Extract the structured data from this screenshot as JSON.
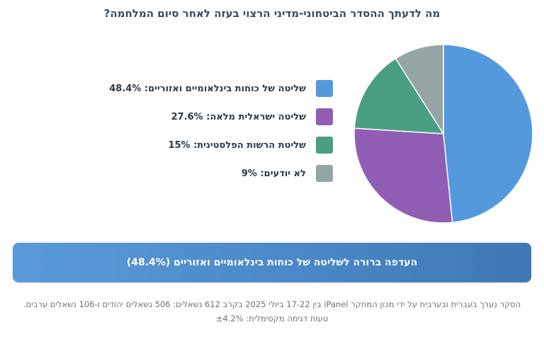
{
  "title": "מה לדעתך ההסדר הביטחוני-מדיני הרצוי בעזה לאחר סיום המלחמה?",
  "legend": [
    {
      "label": "שליטה של כוחות בינלאומיים ואזוריים: 48.4%",
      "color": "#5499db"
    },
    {
      "label": "שליטה ישראלית מלאה: 27.6%",
      "color": "#915eb5"
    },
    {
      "label": "שליטת הרשות הפלסטינית: 15%",
      "color": "#4a9e82"
    },
    {
      "label": "לא יודעים: 9%",
      "color": "#95a5a6"
    }
  ],
  "banner": "העדפה ברורה לשליטה של כוחות בינלאומיים ואזוריים (48.4%)",
  "footnote": "הסקר נערך בעברית ובערבית על ידי מכון המחקר iPanel בין 17-22 ביולי 2025 בקרב 612 נשאלים: 506 נשאלים יהודים ו-106 נשאלים ערבים. טעות דגימה מקסימלית: ±4.2%",
  "chart_data": {
    "type": "pie",
    "categories": [
      "שליטה של כוחות בינלאומיים ואזוריים",
      "שליטה ישראלית מלאה",
      "שליטת הרשות הפלסטינית",
      "לא יודעים"
    ],
    "values": [
      48.4,
      27.6,
      15,
      9
    ],
    "colors": [
      "#5499db",
      "#915eb5",
      "#4a9e82",
      "#95a5a6"
    ],
    "title": "מה לדעתך ההסדר הביטחוני-מדיני הרצוי בעזה לאחר סיום המלחמה?",
    "legend_position": "left"
  }
}
